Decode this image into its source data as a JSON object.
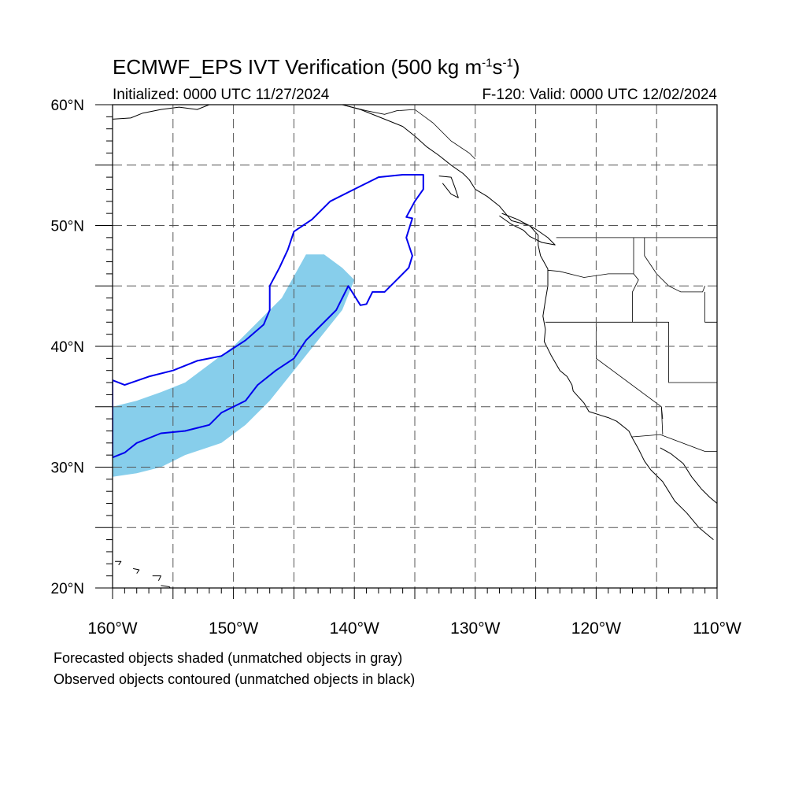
{
  "title": {
    "main": "ECMWF_EPS IVT Verification (500 kg m",
    "exp1": "-1",
    "mid": "s",
    "exp2": "-1",
    "close": ")"
  },
  "initialized": "Initialized: 0000 UTC 11/27/2024",
  "valid": "F-120: Valid: 0000 UTC 12/02/2024",
  "captions": {
    "forecast": "Forecasted objects shaded (unmatched objects in gray)",
    "observed": "Observed objects contoured (unmatched objects in black)"
  },
  "map": {
    "lon_range": [
      -160,
      -110
    ],
    "lat_range": [
      20,
      60
    ],
    "lat_labels": [
      "20°N",
      "30°N",
      "40°N",
      "50°N",
      "60°N"
    ],
    "lon_labels": [
      "160°W",
      "150°W",
      "140°W",
      "130°W",
      "120°W",
      "110°W"
    ],
    "forecast_fill_color": "#87ceeb",
    "observed_contour_color": "#0000ee",
    "grid_style": "dashed"
  },
  "forecast_object": {
    "label": "Forecasted objects shaded",
    "outline": [
      [
        -160,
        35
      ],
      [
        -158,
        35.5
      ],
      [
        -156,
        36.2
      ],
      [
        -154,
        37
      ],
      [
        -152,
        38.5
      ],
      [
        -150,
        40
      ],
      [
        -148,
        42
      ],
      [
        -146,
        44
      ],
      [
        -145,
        45.8
      ],
      [
        -144,
        47.6
      ],
      [
        -142.5,
        47.6
      ],
      [
        -141,
        46.5
      ],
      [
        -140,
        45.5
      ],
      [
        -141,
        43
      ],
      [
        -143,
        40.5
      ],
      [
        -145,
        38
      ],
      [
        -147,
        35.5
      ],
      [
        -149,
        33.5
      ],
      [
        -151,
        32
      ],
      [
        -154,
        31
      ],
      [
        -156,
        30
      ],
      [
        -158,
        29.5
      ],
      [
        -160,
        29.2
      ]
    ]
  },
  "observed_object": {
    "label": "Observed objects contoured",
    "outline": [
      [
        -160,
        37.2
      ],
      [
        -159,
        36.8
      ],
      [
        -157,
        37.5
      ],
      [
        -155,
        38
      ],
      [
        -153,
        38.8
      ],
      [
        -151,
        39.2
      ],
      [
        -149,
        40.5
      ],
      [
        -147.5,
        41.8
      ],
      [
        -147,
        43
      ],
      [
        -147,
        45
      ],
      [
        -146.2,
        46.5
      ],
      [
        -145.5,
        48
      ],
      [
        -145,
        49.5
      ],
      [
        -143.5,
        50.5
      ],
      [
        -142,
        52
      ],
      [
        -140,
        53
      ],
      [
        -138,
        54
      ],
      [
        -136,
        54.2
      ],
      [
        -134.3,
        54.2
      ],
      [
        -134.3,
        53
      ],
      [
        -135,
        52
      ],
      [
        -135.7,
        50.7
      ],
      [
        -135.2,
        50.6
      ],
      [
        -135.7,
        49
      ],
      [
        -135.2,
        47.5
      ],
      [
        -135.5,
        46.5
      ],
      [
        -136.5,
        45.5
      ],
      [
        -137.5,
        44.5
      ],
      [
        -138.5,
        44.5
      ],
      [
        -139,
        43.5
      ],
      [
        -139.5,
        43.4
      ],
      [
        -140,
        44.2
      ],
      [
        -140.5,
        45
      ],
      [
        -141.5,
        43
      ],
      [
        -143,
        41.5
      ],
      [
        -144,
        40.5
      ],
      [
        -145,
        39
      ],
      [
        -146.5,
        38
      ],
      [
        -148,
        36.8
      ],
      [
        -149,
        35.5
      ],
      [
        -151,
        34.5
      ],
      [
        -152,
        33.5
      ],
      [
        -154,
        33
      ],
      [
        -156,
        32.8
      ],
      [
        -158,
        32
      ],
      [
        -159,
        31.2
      ],
      [
        -160,
        30.8
      ]
    ]
  },
  "coastline": {
    "west_coast": [
      [
        -141,
        60
      ],
      [
        -139.5,
        59.6
      ],
      [
        -137.5,
        58.8
      ],
      [
        -136,
        58.2
      ],
      [
        -135,
        57.4
      ],
      [
        -134,
        56.5
      ],
      [
        -133,
        55.8
      ],
      [
        -132,
        55
      ],
      [
        -131,
        54.3
      ],
      [
        -130.5,
        53.8
      ],
      [
        -130,
        53
      ],
      [
        -129,
        52.4
      ],
      [
        -128,
        51.6
      ],
      [
        -127.5,
        51
      ],
      [
        -127,
        50.4
      ],
      [
        -125.5,
        50
      ],
      [
        -124.8,
        49.2
      ],
      [
        -124.8,
        48.4
      ],
      [
        -124.6,
        47.5
      ],
      [
        -124,
        46.4
      ],
      [
        -124,
        45
      ],
      [
        -124.2,
        43.8
      ],
      [
        -124.4,
        42.5
      ],
      [
        -124.2,
        41.4
      ],
      [
        -124.3,
        40.4
      ],
      [
        -123.7,
        39.2
      ],
      [
        -123,
        38
      ],
      [
        -122.4,
        37.5
      ],
      [
        -122,
        36.8
      ],
      [
        -121.9,
        36.3
      ],
      [
        -121,
        35.3
      ],
      [
        -120.6,
        34.6
      ],
      [
        -119,
        34.1
      ],
      [
        -118.3,
        33.8
      ],
      [
        -117.3,
        33
      ],
      [
        -117,
        32.4
      ],
      [
        -116.5,
        31.5
      ],
      [
        -116,
        30.5
      ],
      [
        -115.5,
        29.8
      ],
      [
        -114.5,
        28.8
      ],
      [
        -114,
        28
      ],
      [
        -113.5,
        27.2
      ],
      [
        -112.5,
        26.2
      ],
      [
        -111.5,
        25
      ],
      [
        -110.3,
        24
      ]
    ],
    "alaska_south": [
      [
        -160,
        58.8
      ],
      [
        -158.5,
        58.9
      ],
      [
        -157.5,
        59.3
      ],
      [
        -156,
        59.6
      ],
      [
        -154.5,
        59.8
      ],
      [
        -153,
        59.6
      ],
      [
        -152,
        60
      ]
    ],
    "gulf_of_california_east": [
      [
        -114.7,
        31.6
      ],
      [
        -113.8,
        31.1
      ],
      [
        -112.8,
        30.3
      ],
      [
        -112.1,
        29.2
      ],
      [
        -111.3,
        28.2
      ],
      [
        -110.6,
        27.5
      ],
      [
        -110,
        27
      ]
    ],
    "vancouver_island": [
      [
        -128,
        50.8
      ],
      [
        -127,
        50.1
      ],
      [
        -126,
        49.6
      ],
      [
        -125.5,
        49.1
      ],
      [
        -124.5,
        48.6
      ],
      [
        -123.4,
        48.4
      ],
      [
        -124,
        49
      ],
      [
        -125,
        49.7
      ],
      [
        -126.5,
        50.5
      ],
      [
        -127.8,
        51
      ]
    ],
    "haida_gwaii": [
      [
        -133,
        54.1
      ],
      [
        -132,
        54
      ],
      [
        -131.7,
        53.2
      ],
      [
        -131.4,
        52.3
      ],
      [
        -132,
        52.6
      ],
      [
        -132.7,
        53.5
      ]
    ],
    "hawaii_big_island": [
      [
        -156,
        20.2
      ],
      [
        -155.3,
        20.1
      ],
      [
        -155,
        19.6
      ],
      [
        -155.8,
        19.6
      ]
    ],
    "hawaii_maui": [
      [
        -156.7,
        21
      ],
      [
        -156,
        21
      ],
      [
        -156.2,
        20.6
      ]
    ],
    "hawaii_oahu": [
      [
        -158.3,
        21.6
      ],
      [
        -157.8,
        21.5
      ],
      [
        -158,
        21.2
      ]
    ],
    "hawaii_kauai": [
      [
        -159.8,
        22.2
      ],
      [
        -159.3,
        22.2
      ],
      [
        -159.5,
        21.9
      ]
    ]
  },
  "boundaries": {
    "us_canada": [
      [
        -123.3,
        49
      ],
      [
        -110,
        49
      ]
    ],
    "us_mexico": [
      [
        -117.1,
        32.5
      ],
      [
        -114.7,
        32.7
      ],
      [
        -111,
        31.3
      ],
      [
        -110,
        31.3
      ]
    ],
    "canada_alaska": [
      [
        -141,
        60
      ],
      [
        -139,
        59.5
      ],
      [
        -137.5,
        59.2
      ],
      [
        -136.5,
        59.5
      ],
      [
        -135,
        59.6
      ],
      [
        -133.5,
        58.5
      ],
      [
        -132,
        57
      ],
      [
        -130.5,
        56
      ],
      [
        -130,
        55.5
      ]
    ],
    "or_wa": [
      [
        -124,
        46.3
      ],
      [
        -123,
        46.2
      ],
      [
        -121,
        45.7
      ],
      [
        -119,
        46
      ],
      [
        -116.9,
        46
      ]
    ],
    "id_west": [
      [
        -116.9,
        49
      ],
      [
        -116.9,
        46
      ],
      [
        -116.5,
        45.5
      ],
      [
        -117,
        44.5
      ],
      [
        -117,
        42
      ]
    ],
    "ca_or": [
      [
        -124.2,
        42
      ],
      [
        -117,
        42
      ],
      [
        -114,
        42
      ]
    ],
    "ca_nv": [
      [
        -120,
        42
      ],
      [
        -120,
        39
      ],
      [
        -114.6,
        35
      ],
      [
        -114.5,
        34
      ]
    ],
    "nv_ut": [
      [
        -114,
        42
      ],
      [
        -114,
        37
      ],
      [
        -110,
        37
      ]
    ],
    "id_mt": [
      [
        -116,
        49
      ],
      [
        -116,
        47.5
      ],
      [
        -115,
        46
      ],
      [
        -114,
        45
      ],
      [
        -113,
        44.5
      ],
      [
        -111.2,
        44.5
      ],
      [
        -111,
        45
      ]
    ],
    "id_ut": [
      [
        -111,
        44.5
      ],
      [
        -111,
        42
      ],
      [
        -110,
        42
      ]
    ],
    "az_ca": [
      [
        -114.6,
        35
      ],
      [
        -114.5,
        32.7
      ]
    ]
  }
}
